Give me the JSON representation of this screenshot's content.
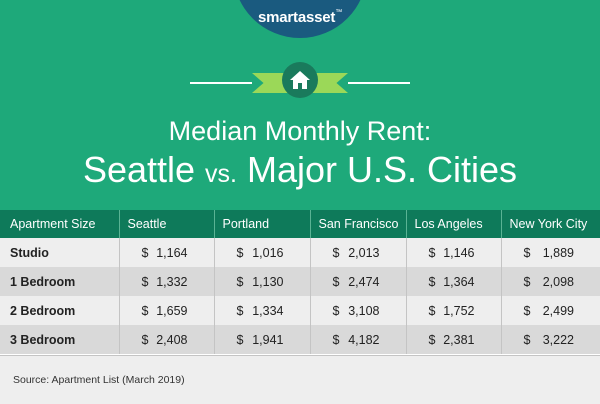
{
  "brand": {
    "name": "smartasset",
    "trademark": "™"
  },
  "icon": "home-icon",
  "colors": {
    "header_green": "#1ea97a",
    "table_header": "#0e7a5a",
    "logo_navy": "#1a5a7f",
    "ribbon_green": "#9bd858",
    "row_light": "#eeeeee",
    "row_dark": "#d9d9d9"
  },
  "title": {
    "line1": "Median Monthly Rent:",
    "line2_left": "Seattle ",
    "line2_vs": "vs.",
    "line2_right": " Major U.S. Cities"
  },
  "chart_data": {
    "type": "table",
    "columns": [
      "Apartment Size",
      "Seattle",
      "Portland",
      "San Francisco",
      "Los Angeles",
      "New York City"
    ],
    "rows": [
      {
        "label": "Studio",
        "values": [
          "1,164",
          "1,016",
          "2,013",
          "1,146",
          "1,889"
        ]
      },
      {
        "label": "1 Bedroom",
        "values": [
          "1,332",
          "1,130",
          "2,474",
          "1,364",
          "2,098"
        ]
      },
      {
        "label": "2 Bedroom",
        "values": [
          "1,659",
          "1,334",
          "3,108",
          "1,752",
          "2,499"
        ]
      },
      {
        "label": "3 Bedroom",
        "values": [
          "2,408",
          "1,941",
          "4,182",
          "2,381",
          "3,222"
        ]
      }
    ],
    "currency_symbol": "$"
  },
  "source": "Source: Apartment List (March 2019)"
}
